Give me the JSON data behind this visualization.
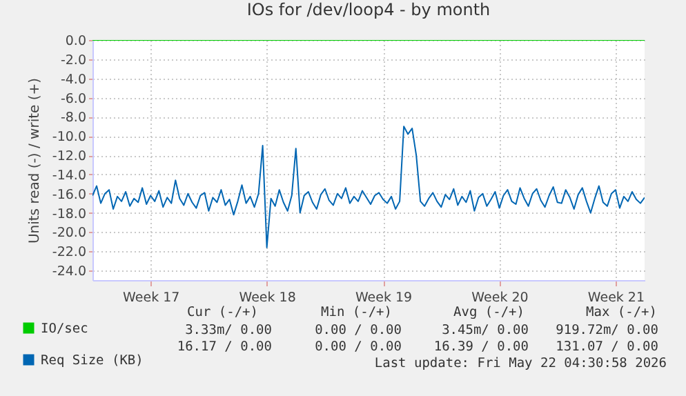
{
  "chart_data": {
    "type": "line",
    "title": "IOs for /dev/loop4 - by month",
    "ylabel": "Units read (-) / write (+)",
    "categories": [
      null,
      null,
      null,
      null,
      null,
      null,
      null,
      null,
      null,
      null,
      null,
      null,
      null,
      null,
      "Week 17",
      null,
      null,
      null,
      null,
      null,
      null,
      null,
      null,
      null,
      null,
      null,
      null,
      null,
      null,
      null,
      null,
      null,
      null,
      null,
      null,
      null,
      null,
      null,
      null,
      null,
      null,
      null,
      "Week 18",
      null,
      null,
      null,
      null,
      null,
      null,
      null,
      null,
      null,
      null,
      null,
      null,
      null,
      null,
      null,
      null,
      null,
      null,
      null,
      null,
      null,
      null,
      null,
      null,
      null,
      null,
      null,
      "Week 19",
      null,
      null,
      null,
      null,
      null,
      null,
      null,
      null,
      null,
      null,
      null,
      null,
      null,
      null,
      null,
      null,
      null,
      null,
      null,
      null,
      null,
      null,
      null,
      null,
      null,
      null,
      null,
      "Week 20",
      null,
      null,
      null,
      null,
      null,
      null,
      null,
      null,
      null,
      null,
      null,
      null,
      null,
      null,
      null,
      null,
      null,
      null,
      null,
      null,
      null,
      null,
      null,
      null,
      null,
      null,
      null,
      "Week 21",
      null,
      null,
      null,
      null,
      null,
      null,
      null
    ],
    "series": [
      {
        "name": "IO/sec",
        "color": "#00cc00",
        "values": [
          0,
          0,
          0,
          0,
          0,
          0,
          0,
          0,
          0,
          0,
          0,
          0,
          0,
          0,
          0,
          0,
          0,
          0,
          0,
          0,
          0,
          0,
          0,
          0,
          0,
          0,
          0,
          0,
          0,
          0,
          0,
          0,
          0,
          0,
          0,
          0,
          0,
          0,
          0,
          0,
          0,
          0,
          0,
          0,
          0,
          0,
          0,
          0,
          0,
          0,
          0,
          0,
          0,
          0,
          0,
          0,
          0,
          0,
          0,
          0,
          0,
          0,
          0,
          0,
          0,
          0,
          0,
          0,
          0,
          0,
          0,
          0,
          0,
          0,
          0,
          0,
          0,
          0,
          0,
          0,
          0,
          0,
          0,
          0,
          0,
          0,
          0,
          0,
          0,
          0,
          0,
          0,
          0,
          0,
          0,
          0,
          0,
          0,
          0,
          0,
          0,
          0,
          0,
          0,
          0,
          0,
          0,
          0,
          0,
          0,
          0,
          0,
          0,
          0,
          0,
          0,
          0,
          0,
          0,
          0,
          0,
          0,
          0,
          0,
          0,
          0,
          0,
          0,
          0,
          0,
          0,
          0,
          0,
          0
        ]
      },
      {
        "name": "Req Size (KB)",
        "color": "#0066b3",
        "values": [
          -16.2,
          -15.2,
          -17.0,
          -16.0,
          -15.6,
          -17.6,
          -16.3,
          -16.8,
          -15.8,
          -17.3,
          -16.5,
          -16.9,
          -15.4,
          -17.1,
          -16.2,
          -16.8,
          -15.7,
          -17.4,
          -16.4,
          -17.0,
          -14.6,
          -16.5,
          -17.2,
          -16.0,
          -16.9,
          -17.5,
          -16.2,
          -15.9,
          -17.8,
          -16.4,
          -16.9,
          -15.6,
          -17.2,
          -16.6,
          -18.2,
          -16.8,
          -15.1,
          -17.0,
          -16.3,
          -17.4,
          -16.0,
          -11.0,
          -21.6,
          -16.5,
          -17.3,
          -15.6,
          -16.9,
          -17.8,
          -16.2,
          -11.3,
          -18.0,
          -16.2,
          -15.8,
          -16.9,
          -17.6,
          -16.1,
          -15.5,
          -16.7,
          -17.2,
          -16.0,
          -16.5,
          -15.4,
          -17.0,
          -16.3,
          -16.8,
          -15.7,
          -16.4,
          -17.1,
          -16.2,
          -15.9,
          -16.6,
          -17.0,
          -16.3,
          -17.6,
          -16.8,
          -9.0,
          -9.8,
          -9.2,
          -12.0,
          -16.8,
          -17.3,
          -16.5,
          -15.9,
          -16.8,
          -17.4,
          -16.1,
          -16.6,
          -15.5,
          -17.2,
          -16.3,
          -16.9,
          -15.7,
          -17.8,
          -16.4,
          -16.0,
          -17.3,
          -16.6,
          -15.8,
          -17.5,
          -16.2,
          -15.6,
          -16.8,
          -17.1,
          -15.4,
          -16.5,
          -17.3,
          -16.0,
          -15.5,
          -16.7,
          -17.4,
          -16.2,
          -15.3,
          -16.9,
          -17.0,
          -15.6,
          -16.4,
          -17.6,
          -16.1,
          -15.4,
          -16.8,
          -18.0,
          -16.5,
          -15.2,
          -16.9,
          -17.3,
          -16.0,
          -15.6,
          -17.5,
          -16.3,
          -16.8,
          -15.8,
          -16.6,
          -17.0,
          -16.4
        ]
      }
    ],
    "ylim": [
      -25,
      0
    ],
    "yticks": [
      {
        "value": 0,
        "label": "0.0"
      },
      {
        "value": -2,
        "label": "-2.0"
      },
      {
        "value": -4,
        "label": "-4.0"
      },
      {
        "value": -6,
        "label": "-6.0"
      },
      {
        "value": -8,
        "label": "-8.0"
      },
      {
        "value": -10,
        "label": "-10.0"
      },
      {
        "value": -12,
        "label": "-12.0"
      },
      {
        "value": -14,
        "label": "-14.0"
      },
      {
        "value": -16,
        "label": "-16.0"
      },
      {
        "value": -18,
        "label": "-18.0"
      },
      {
        "value": -20,
        "label": "-20.0"
      },
      {
        "value": -22,
        "label": "-22.0"
      },
      {
        "value": -24,
        "label": "-24.0"
      }
    ],
    "grid": true,
    "legend": "bottom left",
    "line_style": "solid",
    "annotations": [
      "Cur (-/+)",
      "Min (-/+)",
      "Avg (-/+)",
      "Max (-/+)",
      "3.33m/ 0.00",
      "0.00 / 0.00",
      "3.45m/ 0.00",
      "919.72m/ 0.00",
      "16.17 / 0.00",
      "0.00 / 0.00",
      "16.39 / 0.00",
      "131.07 / 0.00",
      "Last update: Fri May 22 04:30:58 2026"
    ]
  }
}
